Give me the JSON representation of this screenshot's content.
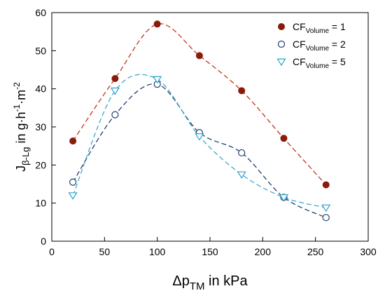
{
  "chart_data": {
    "type": "scatter",
    "title": "",
    "xlabel": {
      "base": "Δp",
      "sub": "TM",
      "rest": " in kPa"
    },
    "ylabel": {
      "base": "J",
      "sub": "β-Lg",
      "rest": " in g·h",
      "sup1": "-1",
      "mid": "·m",
      "sup2": "-2"
    },
    "xlim": [
      0,
      300
    ],
    "ylim": [
      0,
      60
    ],
    "xticks": [
      "0",
      "50",
      "100",
      "150",
      "200",
      "250",
      "300"
    ],
    "yticks": [
      "0",
      "10",
      "20",
      "30",
      "40",
      "50",
      "60"
    ],
    "grid": false,
    "legend_position": "top-right",
    "series": [
      {
        "label": {
          "base": "CF",
          "sub": "Volume",
          "rest": " = 1"
        },
        "marker": "filled-circle",
        "marker_color": "#8b1a0a",
        "line_color": "#c0391e",
        "line_style": "dashed",
        "x": [
          20,
          60,
          100,
          140,
          180,
          220,
          260
        ],
        "y": [
          26.3,
          42.7,
          57.0,
          48.7,
          39.5,
          27.0,
          14.8
        ]
      },
      {
        "label": {
          "base": "CF",
          "sub": "Volume",
          "rest": " = 2"
        },
        "marker": "open-circle",
        "marker_color": "#1f3f6e",
        "line_color": "#1f3f6e",
        "line_style": "dashed",
        "x": [
          20,
          60,
          100,
          140,
          180,
          220,
          260
        ],
        "y": [
          15.5,
          33.2,
          41.2,
          28.5,
          23.2,
          11.5,
          6.2
        ]
      },
      {
        "label": {
          "base": "CF",
          "sub": "Volume",
          "rest": " = 5"
        },
        "marker": "open-triangle-down",
        "marker_color": "#2aa4c8",
        "line_color": "#3fa8cc",
        "line_style": "dashed",
        "x": [
          20,
          60,
          100,
          140,
          180,
          220,
          260
        ],
        "y": [
          12.0,
          39.5,
          42.5,
          27.5,
          17.5,
          11.5,
          8.8
        ]
      }
    ]
  }
}
